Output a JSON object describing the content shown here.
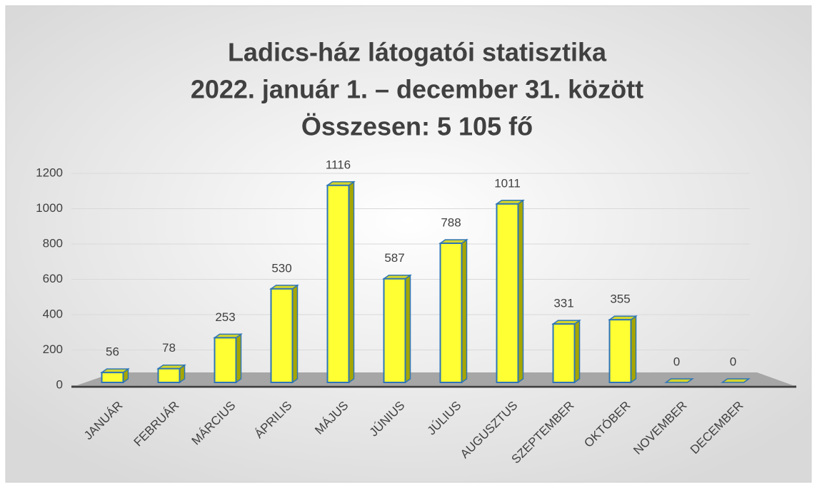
{
  "chart_data": {
    "type": "bar",
    "title": [
      "Ladics-ház látogatói statisztika",
      "2022. január 1. – december 31. között",
      "Összesen: 5 105 fő"
    ],
    "categories": [
      "JANUÁR",
      "FEBRUÁR",
      "MÁRCIUS",
      "ÁPRILIS",
      "MÁJUS",
      "JÚNIUS",
      "JÚLIUS",
      "AUGUSZTUS",
      "SZEPTEMBER",
      "OKTÓBER",
      "NOVEMBER",
      "DECEMBER"
    ],
    "values": [
      56,
      78,
      253,
      530,
      1116,
      587,
      788,
      1011,
      331,
      355,
      0,
      0
    ],
    "color": "#ffff33",
    "ylim": [
      0,
      1200
    ],
    "yticks": [
      0,
      200,
      400,
      600,
      800,
      1000,
      1200
    ],
    "grid": true
  }
}
